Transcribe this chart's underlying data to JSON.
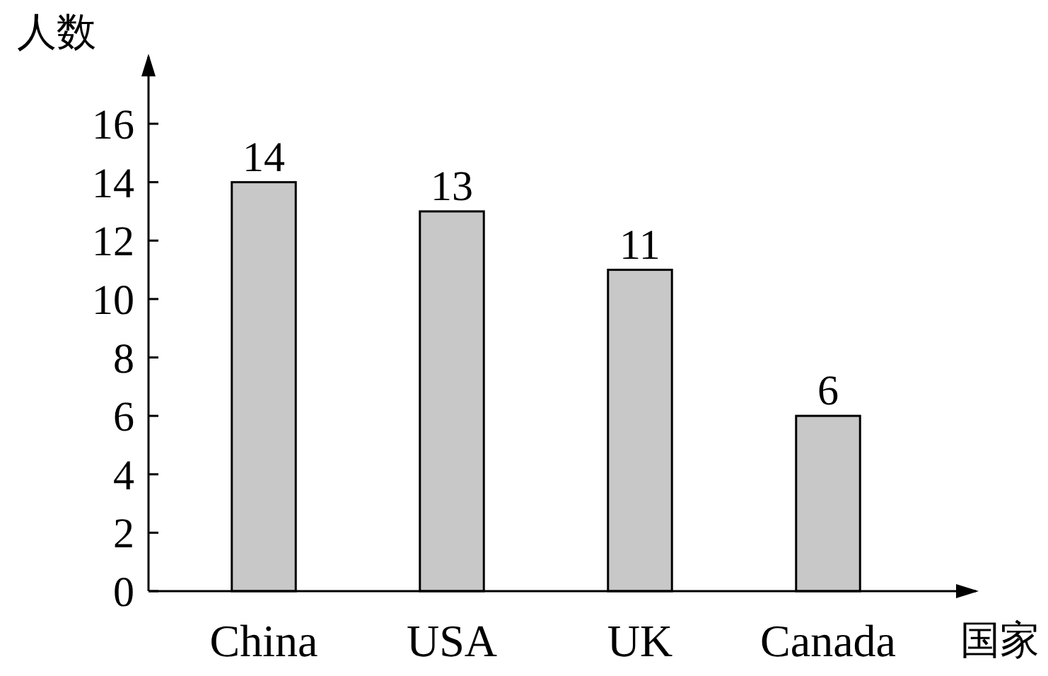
{
  "chart_data": {
    "type": "bar",
    "xlabel": "国家",
    "ylabel": "人数",
    "categories": [
      "China",
      "USA",
      "UK",
      "Canada"
    ],
    "values": [
      14,
      13,
      11,
      6
    ],
    "color": "#c8c8c8",
    "ylim": [
      0,
      18.3
    ],
    "yticks": [
      0,
      2,
      4,
      6,
      8,
      10,
      12,
      14,
      16
    ],
    "data_labels": true,
    "grid": false
  }
}
